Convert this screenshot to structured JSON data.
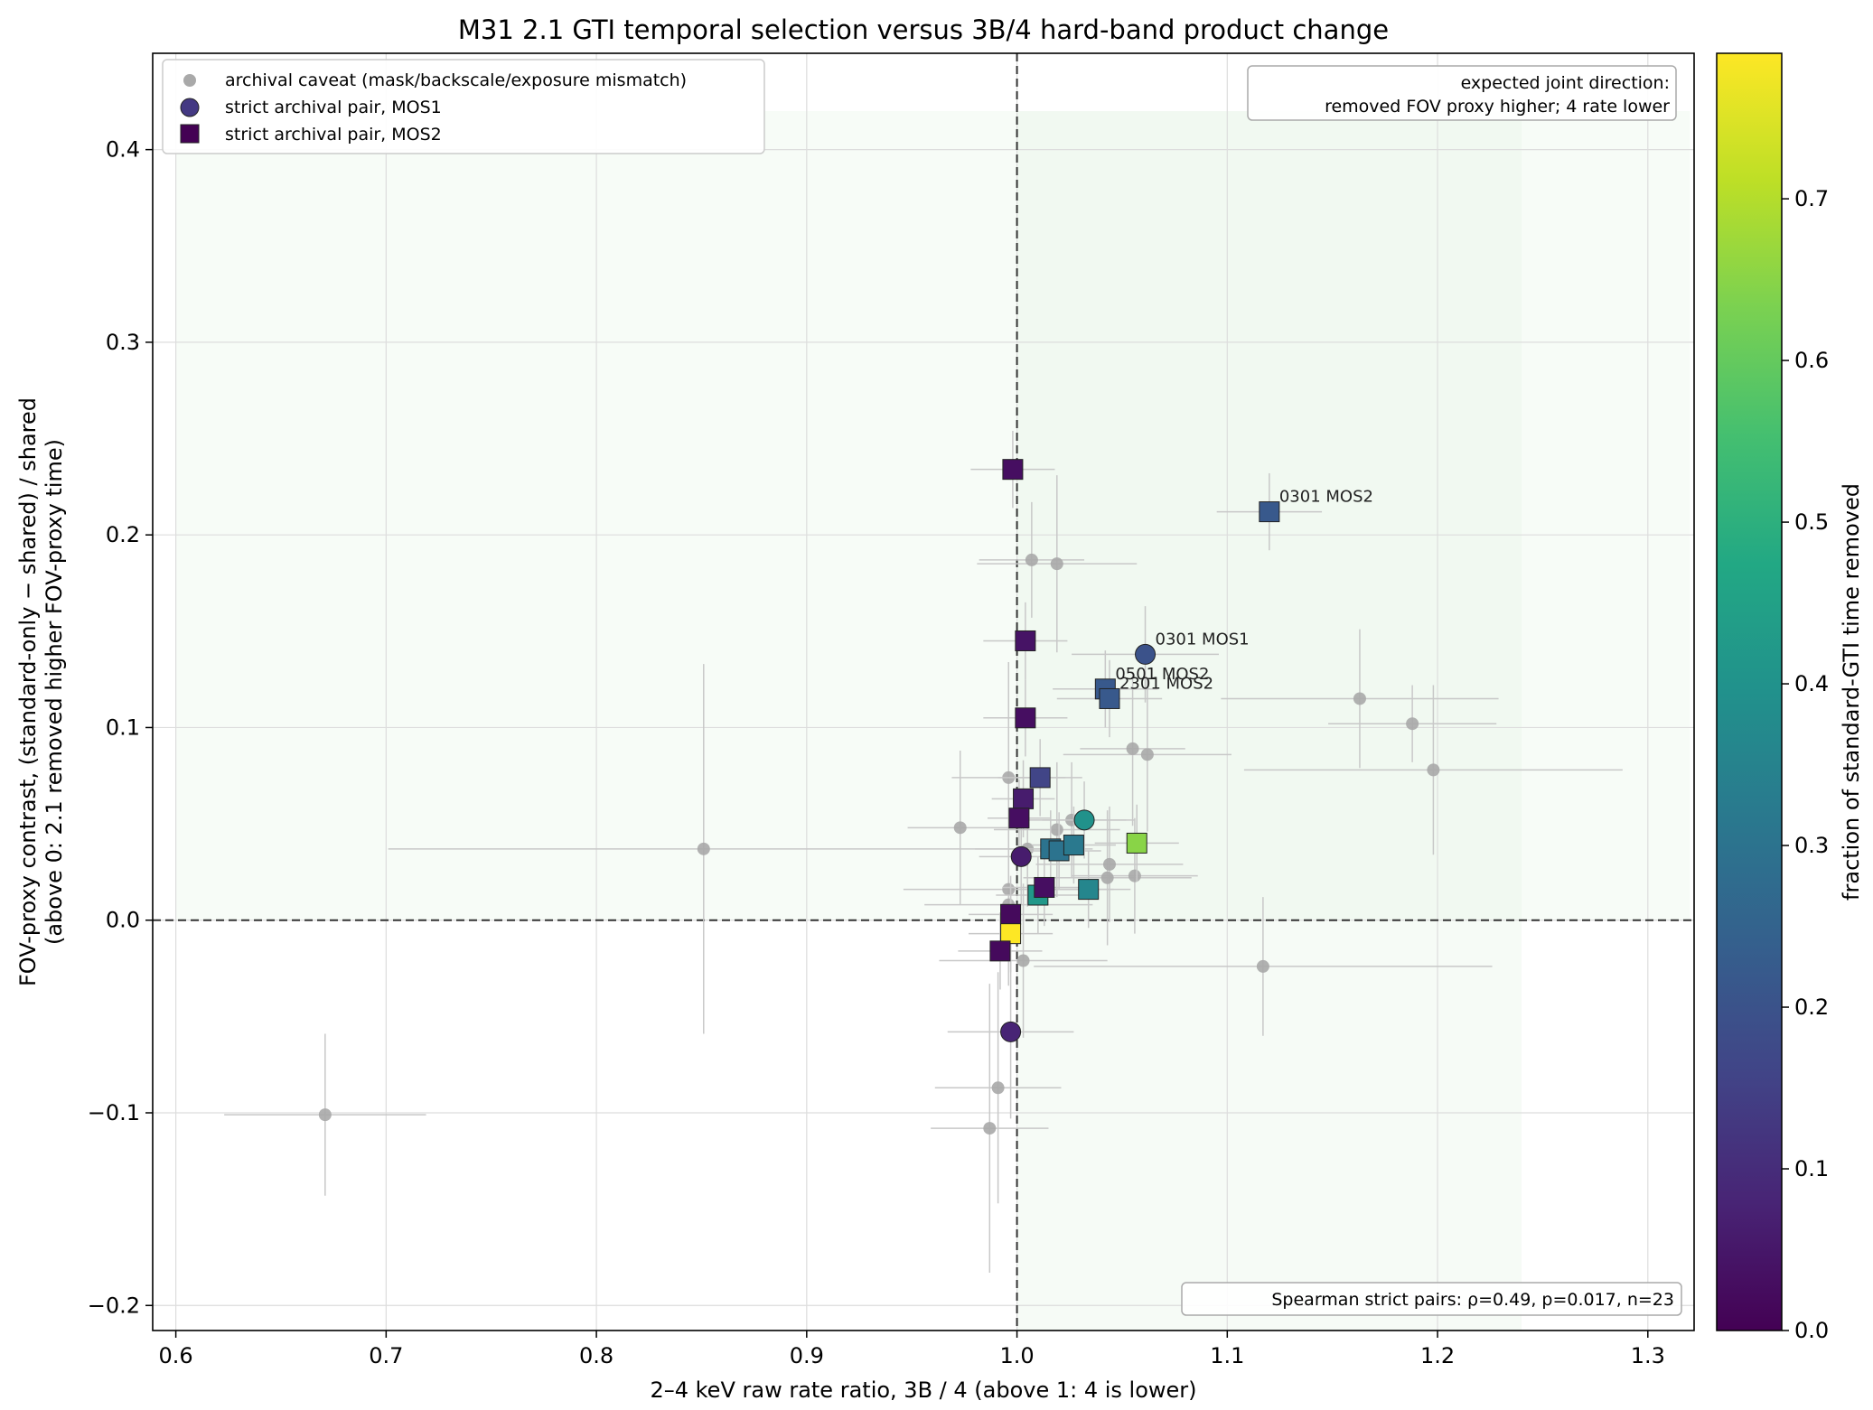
{
  "chart_data": {
    "type": "scatter",
    "title": "M31 2.1 GTI temporal selection versus 3B/4 hard-band product change",
    "xlabel": "2–4 keV raw rate ratio, 3B / 4  (above 1: 4 is lower)",
    "ylabel_line1": "FOV-proxy contrast, (standard-only − shared) / shared",
    "ylabel_line2": "(above 0: 2.1 removed higher FOV-proxy time)",
    "xlim": [
      0.589,
      1.322
    ],
    "ylim": [
      -0.213,
      0.45
    ],
    "xticks": [
      0.6,
      0.7,
      0.8,
      0.9,
      1.0,
      1.1,
      1.2,
      1.3
    ],
    "xtick_labels": [
      "0.6",
      "0.7",
      "0.8",
      "0.9",
      "1.0",
      "1.1",
      "1.2",
      "1.3"
    ],
    "yticks": [
      -0.2,
      -0.1,
      0.0,
      0.1,
      0.2,
      0.3,
      0.4
    ],
    "ytick_labels": [
      "−0.2",
      "−0.1",
      "0.0",
      "0.1",
      "0.2",
      "0.3",
      "0.4"
    ],
    "grid": true,
    "reference_lines": {
      "x": 1.0,
      "y": 0.0
    },
    "shaded_regions": [
      {
        "x": [
          0.6,
          1.32
        ],
        "y": [
          0.0,
          0.42
        ],
        "color": "#e8f5e9",
        "opacity": 0.35
      },
      {
        "x": [
          1.0,
          1.24
        ],
        "y": [
          -0.213,
          0.42
        ],
        "color": "#e8f5e9",
        "opacity": 0.4
      }
    ],
    "legend_position": "upper-left",
    "legend": {
      "caveat": "archival caveat (mask/backscale/exposure mismatch)",
      "mos1": "strict archival pair, MOS1",
      "mos2": "strict archival pair, MOS2"
    },
    "direction_note_line1": "expected joint direction:",
    "direction_note_line2": "removed FOV proxy higher; 4 rate lower",
    "stats_note": "Spearman strict pairs: ρ=0.49, p=0.017, n=23",
    "colorbar": {
      "label": "fraction of standard-GTI time removed",
      "range": [
        0.0,
        0.79
      ],
      "ticks": [
        0.0,
        0.1,
        0.2,
        0.3,
        0.4,
        0.5,
        0.6,
        0.7
      ],
      "tick_labels": [
        "0.0",
        "0.1",
        "0.2",
        "0.3",
        "0.4",
        "0.5",
        "0.6",
        "0.7"
      ],
      "colormap": "viridis"
    },
    "caveat_points": [
      {
        "x": 0.671,
        "y": -0.101,
        "xerr": 0.048,
        "yerr": 0.042
      },
      {
        "x": 0.851,
        "y": 0.037,
        "xerr": 0.15,
        "yerr": 0.096
      },
      {
        "x": 0.973,
        "y": 0.048,
        "xerr": 0.025,
        "yerr": 0.04
      },
      {
        "x": 0.987,
        "y": -0.108,
        "xerr": 0.028,
        "yerr": 0.075
      },
      {
        "x": 0.991,
        "y": -0.087,
        "xerr": 0.03,
        "yerr": 0.06
      },
      {
        "x": 0.996,
        "y": 0.074,
        "xerr": 0.027,
        "yerr": 0.06
      },
      {
        "x": 0.996,
        "y": 0.016,
        "xerr": 0.05,
        "yerr": 0.05
      },
      {
        "x": 0.996,
        "y": 0.008,
        "xerr": 0.04,
        "yerr": 0.03
      },
      {
        "x": 1.003,
        "y": -0.021,
        "xerr": 0.04,
        "yerr": 0.04
      },
      {
        "x": 1.005,
        "y": 0.037,
        "xerr": 0.025,
        "yerr": 0.03
      },
      {
        "x": 1.007,
        "y": 0.187,
        "xerr": 0.025,
        "yerr": 0.03
      },
      {
        "x": 1.019,
        "y": 0.185,
        "xerr": 0.038,
        "yerr": 0.046
      },
      {
        "x": 1.019,
        "y": 0.047,
        "xerr": 0.03,
        "yerr": 0.035
      },
      {
        "x": 1.026,
        "y": 0.052,
        "xerr": 0.03,
        "yerr": 0.03
      },
      {
        "x": 1.043,
        "y": 0.022,
        "xerr": 0.04,
        "yerr": 0.035
      },
      {
        "x": 1.044,
        "y": 0.029,
        "xerr": 0.035,
        "yerr": 0.03
      },
      {
        "x": 1.055,
        "y": 0.089,
        "xerr": 0.025,
        "yerr": 0.04
      },
      {
        "x": 1.056,
        "y": 0.023,
        "xerr": 0.03,
        "yerr": 0.03
      },
      {
        "x": 1.062,
        "y": 0.086,
        "xerr": 0.04,
        "yerr": 0.04
      },
      {
        "x": 1.117,
        "y": -0.024,
        "xerr": 0.109,
        "yerr": 0.036
      },
      {
        "x": 1.163,
        "y": 0.115,
        "xerr": 0.066,
        "yerr": 0.036
      },
      {
        "x": 1.188,
        "y": 0.102,
        "xerr": 0.04,
        "yerr": 0.02
      },
      {
        "x": 1.198,
        "y": 0.078,
        "xerr": 0.09,
        "yerr": 0.044
      }
    ],
    "mos1_points": [
      {
        "x": 0.997,
        "y": -0.058,
        "c": 0.08,
        "xerr": 0.03,
        "yerr": 0.045
      },
      {
        "x": 1.002,
        "y": 0.033,
        "c": 0.06,
        "xerr": 0.02,
        "yerr": 0.025
      },
      {
        "x": 1.032,
        "y": 0.052,
        "c": 0.4,
        "xerr": 0.02,
        "yerr": 0.02
      },
      {
        "x": 1.061,
        "y": 0.138,
        "c": 0.2,
        "xerr": 0.035,
        "yerr": 0.025,
        "label": "0301 MOS1"
      }
    ],
    "mos2_points": [
      {
        "x": 0.998,
        "y": 0.234,
        "c": 0.03,
        "xerr": 0.02,
        "yerr": 0.02
      },
      {
        "x": 1.004,
        "y": 0.145,
        "c": 0.04,
        "xerr": 0.02,
        "yerr": 0.02
      },
      {
        "x": 1.004,
        "y": 0.105,
        "c": 0.03,
        "xerr": 0.02,
        "yerr": 0.02
      },
      {
        "x": 1.011,
        "y": 0.074,
        "c": 0.16,
        "xerr": 0.02,
        "yerr": 0.02
      },
      {
        "x": 1.003,
        "y": 0.063,
        "c": 0.06,
        "xerr": 0.015,
        "yerr": 0.02
      },
      {
        "x": 1.001,
        "y": 0.053,
        "c": 0.03,
        "xerr": 0.015,
        "yerr": 0.02
      },
      {
        "x": 1.042,
        "y": 0.12,
        "c": 0.22,
        "xerr": 0.025,
        "yerr": 0.02,
        "label": "0501 MOS2"
      },
      {
        "x": 1.044,
        "y": 0.115,
        "c": 0.22,
        "xerr": 0.025,
        "yerr": 0.02,
        "label": "2301 MOS2"
      },
      {
        "x": 1.12,
        "y": 0.212,
        "c": 0.22,
        "xerr": 0.025,
        "yerr": 0.02,
        "label": "0301 MOS2"
      },
      {
        "x": 1.057,
        "y": 0.04,
        "c": 0.65,
        "xerr": 0.02,
        "yerr": 0.02
      },
      {
        "x": 1.016,
        "y": 0.037,
        "c": 0.3,
        "xerr": 0.02,
        "yerr": 0.02
      },
      {
        "x": 1.02,
        "y": 0.036,
        "c": 0.3,
        "xerr": 0.02,
        "yerr": 0.02
      },
      {
        "x": 1.027,
        "y": 0.039,
        "c": 0.32,
        "xerr": 0.02,
        "yerr": 0.02
      },
      {
        "x": 1.034,
        "y": 0.016,
        "c": 0.36,
        "xerr": 0.02,
        "yerr": 0.02
      },
      {
        "x": 1.01,
        "y": 0.013,
        "c": 0.42,
        "xerr": 0.02,
        "yerr": 0.02
      },
      {
        "x": 1.013,
        "y": 0.017,
        "c": 0.03,
        "xerr": 0.02,
        "yerr": 0.02
      },
      {
        "x": 0.997,
        "y": 0.003,
        "c": 0.02,
        "xerr": 0.02,
        "yerr": 0.02
      },
      {
        "x": 0.997,
        "y": -0.007,
        "c": 0.79,
        "xerr": 0.02,
        "yerr": 0.02
      },
      {
        "x": 0.992,
        "y": -0.016,
        "c": 0.02,
        "xerr": 0.02,
        "yerr": 0.02
      }
    ]
  }
}
